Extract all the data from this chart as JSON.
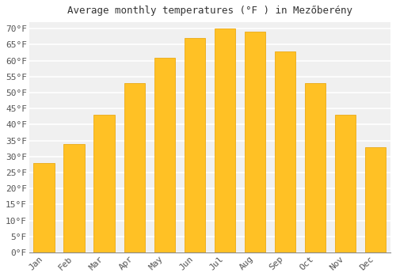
{
  "title": "Average monthly temperatures (°F ) in Mezőberény",
  "months": [
    "Jan",
    "Feb",
    "Mar",
    "Apr",
    "May",
    "Jun",
    "Jul",
    "Aug",
    "Sep",
    "Oct",
    "Nov",
    "Dec"
  ],
  "values": [
    28,
    34,
    43,
    53,
    61,
    67,
    70,
    69,
    63,
    53,
    43,
    33
  ],
  "bar_color_top": "#FFC200",
  "bar_color_bottom": "#FFB000",
  "bar_edge_color": "#E8A000",
  "background_color": "#FFFFFF",
  "plot_bg_color": "#F0F0F0",
  "grid_color": "#FFFFFF",
  "text_color": "#555555",
  "title_color": "#333333",
  "ylim": [
    0,
    72
  ],
  "yticks": [
    0,
    5,
    10,
    15,
    20,
    25,
    30,
    35,
    40,
    45,
    50,
    55,
    60,
    65,
    70
  ],
  "ylabel_suffix": "°F"
}
